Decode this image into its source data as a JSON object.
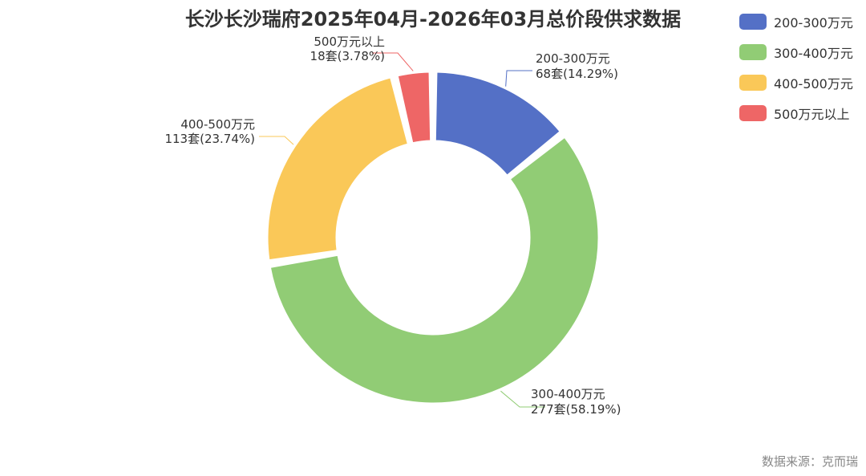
{
  "chart_data": {
    "type": "pie",
    "title": "长沙长沙瑞府2025年04月-2026年03月总价段供求数据",
    "unit": "套",
    "categories": [
      "200-300万元",
      "300-400万元",
      "400-500万元",
      "500万元以上"
    ],
    "values": [
      68,
      277,
      113,
      18
    ],
    "percentages": [
      14.29,
      58.19,
      23.74,
      3.78
    ],
    "data_labels": [
      {
        "name": "200-300万元",
        "value_text": "68套(14.29%)"
      },
      {
        "name": "300-400万元",
        "value_text": "277套(58.19%)"
      },
      {
        "name": "400-500万元",
        "value_text": "113套(23.74%)"
      },
      {
        "name": "500万元以上",
        "value_text": "18套(3.78%)"
      }
    ],
    "colors": [
      "#5470c6",
      "#91cc75",
      "#fac858",
      "#ee6666"
    ],
    "legend_position": "top-right",
    "style": "donut"
  },
  "source": "数据来源：克而瑞"
}
